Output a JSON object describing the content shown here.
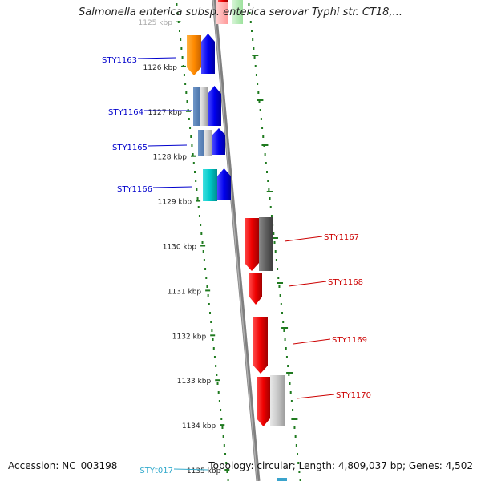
{
  "title": "Salmonella enterica subsp. enterica serovar Typhi str. CT18,...",
  "footer": {
    "accession": "Accession: NC_003198",
    "topology": "Topology: circular; Length: 4,809,037 bp; Genes: 4,502"
  },
  "colors": {
    "track_dots": "#1f7a1f",
    "axis": "#808080",
    "left_label": "#0000cc",
    "right_label": "#cc0000",
    "trna_label": "#33aacc"
  },
  "ticks": [
    "1125 kbp",
    "1126 kbp",
    "1127 kbp",
    "1128 kbp",
    "1129 kbp",
    "1130 kbp",
    "1131 kbp",
    "1132 kbp",
    "1133 kbp",
    "1134 kbp",
    "1135 kbp"
  ],
  "genes_left": [
    {
      "label": "STY1163",
      "kbp": 1126
    },
    {
      "label": "STY1164",
      "kbp": 1127
    },
    {
      "label": "STY1165",
      "kbp": 1128
    },
    {
      "label": "STY1166",
      "kbp": 1129
    },
    {
      "label": "STYt017",
      "kbp": 1135
    }
  ],
  "genes_right": [
    {
      "label": "STY1167",
      "kbp": 1130
    },
    {
      "label": "STY1168",
      "kbp": 1131
    },
    {
      "label": "STY1169",
      "kbp": 1132
    },
    {
      "label": "STY1170",
      "kbp": 1133
    }
  ]
}
